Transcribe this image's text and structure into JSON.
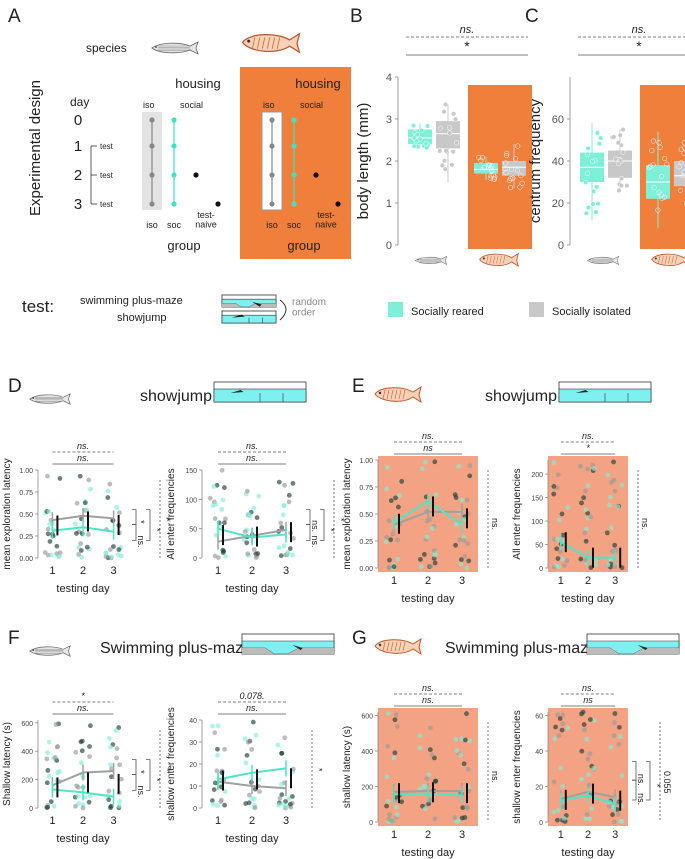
{
  "panel_letters": [
    "A",
    "B",
    "C",
    "D",
    "E",
    "F",
    "G"
  ],
  "design": {
    "species_label": "species",
    "vertical_label": "Experimental design",
    "day_label": "day",
    "days": [
      "0",
      "1",
      "2",
      "3"
    ],
    "test_label": "test",
    "housing_label": "housing",
    "iso_label": "iso",
    "social_label": "social",
    "group_labels": [
      "iso",
      "soc",
      "test-\nnaive"
    ],
    "group_label": "group",
    "test_row_label": "test:",
    "test_names": [
      "swimming plus-maze",
      "showjump"
    ],
    "random_order": "random\norder"
  },
  "colors": {
    "social": "#7ef0d8",
    "isolated": "#c8c8c8",
    "orange": "#f07f3c",
    "salmon": "#f3a283",
    "dark": "#1a4d40",
    "grey_line": "#a0a0a0"
  },
  "legend": {
    "social": "Socially reared",
    "isolated": "Socially isolated"
  },
  "chart_data": [
    {
      "id": "B",
      "type": "boxplot",
      "ylabel": "body length (mm)",
      "ylim": [
        0,
        4
      ],
      "yticks": [
        "0",
        "1",
        "2",
        "3",
        "4"
      ],
      "groups": [
        {
          "species": "zebrafish",
          "condition": "social",
          "median": 2.55,
          "q1": 2.4,
          "q3": 2.75,
          "min": 2.3,
          "max": 2.9
        },
        {
          "species": "zebrafish",
          "condition": "isolated",
          "median": 2.65,
          "q1": 2.3,
          "q3": 2.95,
          "min": 1.5,
          "max": 3.35
        },
        {
          "species": "danionella",
          "condition": "social",
          "median": 1.8,
          "q1": 1.7,
          "q3": 1.95,
          "min": 1.55,
          "max": 2.1
        },
        {
          "species": "danionella",
          "condition": "isolated",
          "median": 1.85,
          "q1": 1.65,
          "q3": 2.0,
          "min": 1.35,
          "max": 2.4
        }
      ],
      "sig": [
        "ns.",
        "*"
      ]
    },
    {
      "id": "C",
      "type": "boxplot",
      "ylabel": "centrum frequency",
      "ylim": [
        0,
        80
      ],
      "yticks": [
        "0",
        "20",
        "40",
        "60"
      ],
      "groups": [
        {
          "species": "zebrafish",
          "condition": "social",
          "median": 37,
          "q1": 30,
          "q3": 44,
          "min": 12,
          "max": 58
        },
        {
          "species": "zebrafish",
          "condition": "isolated",
          "median": 40,
          "q1": 32,
          "q3": 45,
          "min": 25,
          "max": 55
        },
        {
          "species": "danionella",
          "condition": "social",
          "median": 30,
          "q1": 22,
          "q3": 38,
          "min": 8,
          "max": 54
        },
        {
          "species": "danionella",
          "condition": "isolated",
          "median": 33,
          "q1": 28,
          "q3": 40,
          "min": 20,
          "max": 52
        }
      ],
      "sig": [
        "ns.",
        "*"
      ]
    }
  ],
  "line_panels": [
    {
      "id": "D",
      "title": "showjump",
      "test": "showjump",
      "species": "zebrafish",
      "orange": false,
      "plots": [
        {
          "ylabel": "mean exploration latency",
          "ylim": [
            0,
            1
          ],
          "yticks": [
            "0.00",
            "0.25",
            "0.50",
            "0.75",
            "1.00"
          ],
          "yvals": [
            0,
            0.25,
            0.5,
            0.75,
            1
          ],
          "social": [
            0.31,
            0.35,
            0.3
          ],
          "isolated": [
            0.43,
            0.48,
            0.45
          ],
          "test_naive": 0.15,
          "top_sig": [
            "ns.",
            "ns."
          ],
          "right_sig": [
            "*",
            "ns.",
            "*",
            "*"
          ]
        },
        {
          "ylabel": "All enter frequencies",
          "ylim": [
            0,
            150
          ],
          "yticks": [
            "0",
            "50",
            "100",
            "150"
          ],
          "yvals": [
            0,
            50,
            100,
            150
          ],
          "social": [
            50,
            35,
            40
          ],
          "isolated": [
            28,
            38,
            48
          ],
          "test_naive": 60,
          "top_sig": [
            "ns.",
            "ns."
          ],
          "right_sig": [
            "ns.",
            "ns.",
            "*",
            "*"
          ]
        }
      ],
      "xlabel": "testing day",
      "xticks": [
        "1",
        "2",
        "3"
      ]
    },
    {
      "id": "E",
      "title": "showjump",
      "test": "showjump",
      "species": "danionella",
      "orange": true,
      "plots": [
        {
          "ylabel": "mean exploration latency",
          "ylim": [
            0,
            1
          ],
          "yticks": [
            "0.00",
            "0.25",
            "0.50",
            "0.75",
            "1.00"
          ],
          "yvals": [
            0,
            0.25,
            0.5,
            0.75,
            1
          ],
          "social": [
            0.42,
            0.62,
            0.4
          ],
          "isolated": [
            0.4,
            0.52,
            0.52
          ],
          "test_naive": null,
          "top_sig": [
            "ns.",
            "ns"
          ],
          "right_sig": [
            "ns."
          ]
        },
        {
          "ylabel": "All enter frequencies",
          "ylim": [
            0,
            230
          ],
          "yticks": [
            "0",
            "50",
            "100",
            "150",
            "200"
          ],
          "yvals": [
            0,
            50,
            100,
            150,
            200
          ],
          "social": [
            55,
            22,
            22
          ],
          "isolated": null,
          "test_naive": null,
          "top_sig": [
            "ns.",
            "*"
          ],
          "right_sig": [
            "ns."
          ]
        }
      ],
      "xlabel": "testing day",
      "xticks": [
        "1",
        "2",
        "3"
      ]
    },
    {
      "id": "F",
      "title": "Swimming plus-maze",
      "test": "plusmaze",
      "species": "zebrafish",
      "orange": false,
      "plots": [
        {
          "ylabel": "Shallow latency (s)",
          "ylim": [
            0,
            620
          ],
          "yticks": [
            "0",
            "200",
            "400",
            "600"
          ],
          "yvals": [
            0,
            200,
            400,
            600
          ],
          "social": [
            130,
            110,
            80
          ],
          "isolated": [
            160,
            250,
            260
          ],
          "test_naive": 100,
          "top_sig": [
            "*",
            "ns."
          ],
          "right_sig": [
            "*",
            "ns.",
            "*",
            "*"
          ]
        },
        {
          "ylabel": "shallow enter frequencies",
          "ylim": [
            0,
            40
          ],
          "yticks": [
            "0",
            "10",
            "20",
            "30",
            "40"
          ],
          "yvals": [
            0,
            10,
            20,
            30,
            40
          ],
          "social": [
            13,
            16,
            18
          ],
          "isolated": [
            12,
            10,
            9
          ],
          "test_naive": null,
          "top_sig": [
            "0.078.",
            "ns."
          ],
          "right_sig": [
            "*"
          ]
        }
      ],
      "xlabel": "testing day",
      "xticks": [
        "1",
        "2",
        "3"
      ]
    },
    {
      "id": "G",
      "title": "Swimming plus-maze",
      "test": "plusmaze",
      "species": "danionella",
      "orange": true,
      "plots": [
        {
          "ylabel": "shallow latency (s)",
          "ylim": [
            0,
            620
          ],
          "yticks": [
            "0",
            "200",
            "400",
            "600"
          ],
          "yvals": [
            0,
            200,
            400,
            600
          ],
          "social": [
            155,
            160,
            150
          ],
          "isolated": [
            170,
            175,
            175
          ],
          "test_naive": null,
          "top_sig": [
            "ns.",
            "ns."
          ],
          "right_sig": [
            "ns."
          ]
        },
        {
          "ylabel": "shallow enter frequencies",
          "ylim": [
            0,
            62
          ],
          "yticks": [
            "0",
            "20",
            "40",
            "60"
          ],
          "yvals": [
            0,
            20,
            40,
            60
          ],
          "social": [
            12,
            15,
            10
          ],
          "isolated": [
            13,
            17,
            14
          ],
          "test_naive": null,
          "top_sig": [
            "ns.",
            "ns"
          ],
          "right_sig": [
            "ns.",
            "ns.",
            "*",
            "0.055"
          ]
        }
      ],
      "xlabel": "testing day",
      "xticks": [
        "1",
        "2",
        "3"
      ]
    }
  ]
}
